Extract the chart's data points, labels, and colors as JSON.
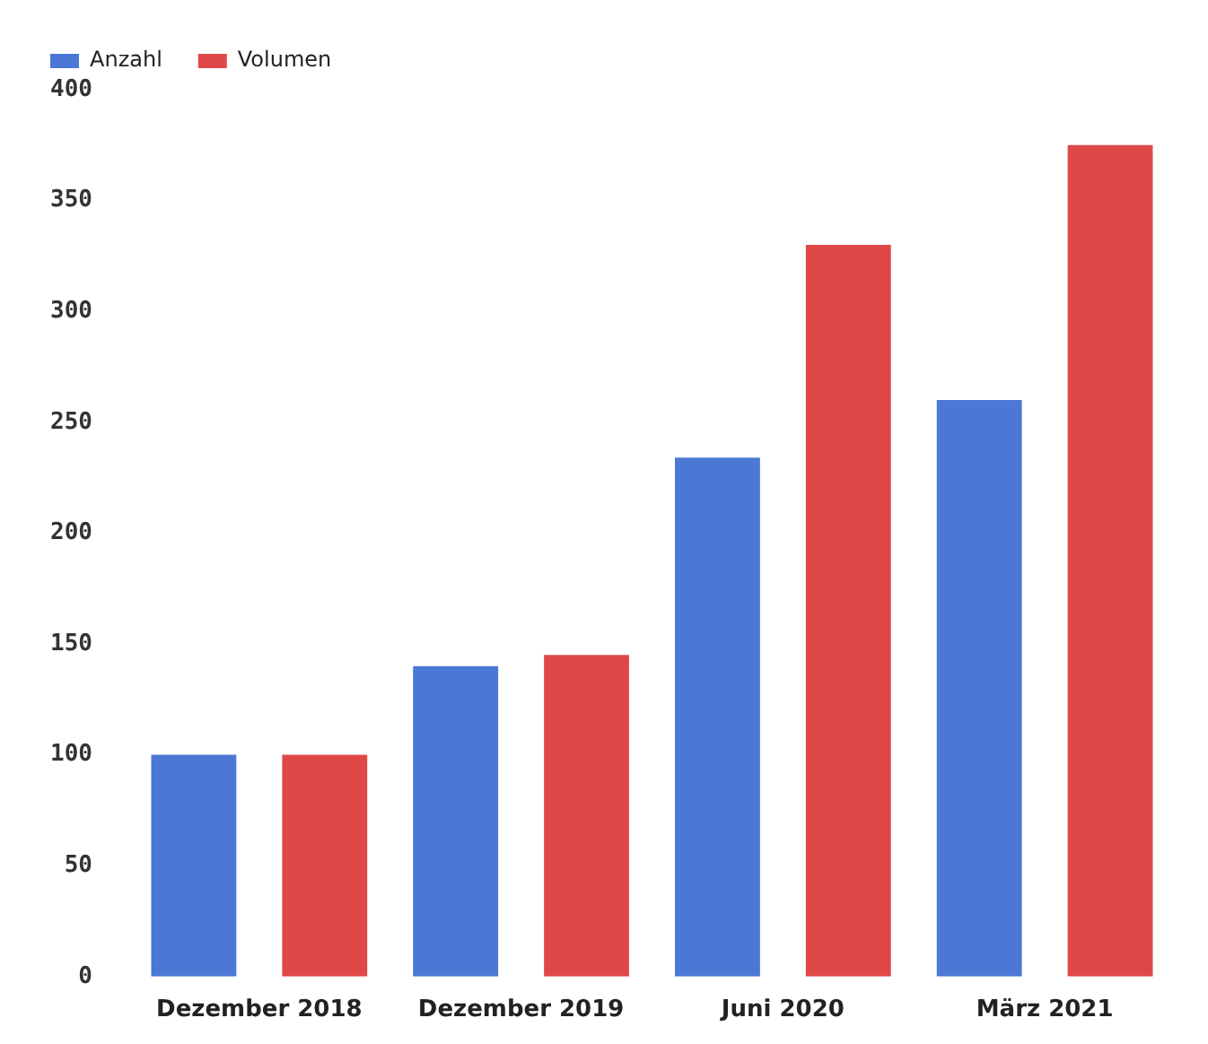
{
  "chart_data": {
    "type": "bar",
    "categories": [
      "Dezember 2018",
      "Dezember 2019",
      "Juni 2020",
      "März 2021"
    ],
    "series": [
      {
        "name": "Anzahl",
        "color": "#4a78d4",
        "values": [
          100,
          140,
          234,
          260
        ]
      },
      {
        "name": "Volumen",
        "color": "#e04848",
        "values": [
          100,
          145,
          330,
          375
        ]
      }
    ],
    "ylim": [
      0,
      400
    ],
    "yticks": [
      0,
      50,
      100,
      150,
      200,
      250,
      300,
      350,
      400
    ],
    "grid": false,
    "legend": "top left"
  }
}
